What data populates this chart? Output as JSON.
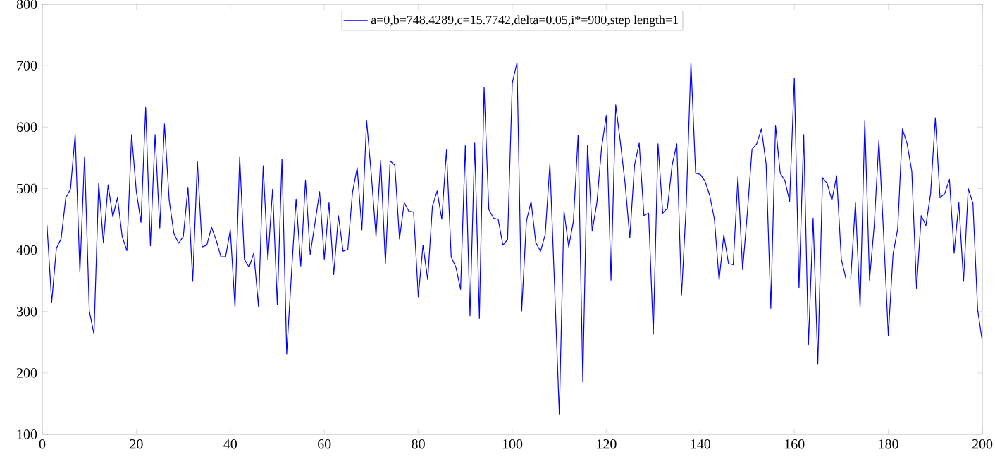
{
  "chart_data": {
    "type": "line",
    "x": [
      1,
      2,
      3,
      4,
      5,
      6,
      7,
      8,
      9,
      10,
      11,
      12,
      13,
      14,
      15,
      16,
      17,
      18,
      19,
      20,
      21,
      22,
      23,
      24,
      25,
      26,
      27,
      28,
      29,
      30,
      31,
      32,
      33,
      34,
      35,
      36,
      37,
      38,
      39,
      40,
      41,
      42,
      43,
      44,
      45,
      46,
      47,
      48,
      49,
      50,
      51,
      52,
      53,
      54,
      55,
      56,
      57,
      58,
      59,
      60,
      61,
      62,
      63,
      64,
      65,
      66,
      67,
      68,
      69,
      70,
      71,
      72,
      73,
      74,
      75,
      76,
      77,
      78,
      79,
      80,
      81,
      82,
      83,
      84,
      85,
      86,
      87,
      88,
      89,
      90,
      91,
      92,
      93,
      94,
      95,
      96,
      97,
      98,
      99,
      100,
      101,
      102,
      103,
      104,
      105,
      106,
      107,
      108,
      109,
      110,
      111,
      112,
      113,
      114,
      115,
      116,
      117,
      118,
      119,
      120,
      121,
      122,
      123,
      124,
      125,
      126,
      127,
      128,
      129,
      130,
      131,
      132,
      133,
      134,
      135,
      136,
      137,
      138,
      139,
      140,
      141,
      142,
      143,
      144,
      145,
      146,
      147,
      148,
      149,
      150,
      151,
      152,
      153,
      154,
      155,
      156,
      157,
      158,
      159,
      160,
      161,
      162,
      163,
      164,
      165,
      166,
      167,
      168,
      169,
      170,
      171,
      172,
      173,
      174,
      175,
      176,
      177,
      178,
      179,
      180,
      181,
      182,
      183,
      184,
      185,
      186,
      187,
      188,
      189,
      190,
      191,
      192,
      193,
      194,
      195,
      196,
      197,
      198,
      199,
      200
    ],
    "series": [
      {
        "name": "a=0,b=748.4289,c=15.7742,delta=0.05,i*=900,step length=1",
        "color": "#0000ff",
        "values": [
          441,
          315,
          403,
          418,
          485,
          499,
          588,
          364,
          552,
          301,
          263,
          509,
          412,
          506,
          454,
          485,
          422,
          399,
          588,
          496,
          445,
          632,
          407,
          588,
          435,
          605,
          481,
          427,
          411,
          422,
          502,
          349,
          544,
          405,
          408,
          437,
          416,
          389,
          389,
          433,
          307,
          552,
          385,
          372,
          395,
          308,
          537,
          384,
          499,
          311,
          548,
          231,
          360,
          483,
          374,
          514,
          393,
          443,
          495,
          385,
          477,
          360,
          456,
          398,
          401,
          494,
          534,
          433,
          611,
          523,
          422,
          546,
          378,
          545,
          538,
          418,
          477,
          463,
          462,
          324,
          408,
          352,
          471,
          496,
          450,
          563,
          389,
          372,
          336,
          570,
          293,
          574,
          289,
          665,
          466,
          452,
          450,
          408,
          417,
          672,
          705,
          301,
          447,
          479,
          412,
          398,
          425,
          540,
          340,
          133,
          463,
          405,
          447,
          587,
          185,
          571,
          431,
          477,
          567,
          619,
          351,
          636,
          575,
          508,
          420,
          538,
          574,
          456,
          460,
          263,
          573,
          460,
          468,
          538,
          573,
          326,
          473,
          705,
          525,
          523,
          512,
          489,
          450,
          351,
          425,
          378,
          376,
          519,
          368,
          460,
          564,
          573,
          597,
          540,
          305,
          603,
          525,
          513,
          479,
          680,
          338,
          588,
          246,
          452,
          215,
          518,
          508,
          481,
          521,
          385,
          353,
          353,
          477,
          307,
          611,
          351,
          440,
          578,
          425,
          261,
          393,
          435,
          597,
          573,
          528,
          337,
          456,
          440,
          492,
          615,
          485,
          492,
          515,
          395,
          477,
          349,
          500,
          476,
          303,
          251
        ]
      }
    ],
    "xlim": [
      0,
      200
    ],
    "xticks": [
      0,
      20,
      40,
      60,
      80,
      100,
      120,
      140,
      160,
      180,
      200
    ],
    "ylim": [
      100,
      800
    ],
    "yticks": [
      100,
      200,
      300,
      400,
      500,
      600,
      700,
      800
    ],
    "legend": "top",
    "marker": "none",
    "line_style": "solid"
  }
}
